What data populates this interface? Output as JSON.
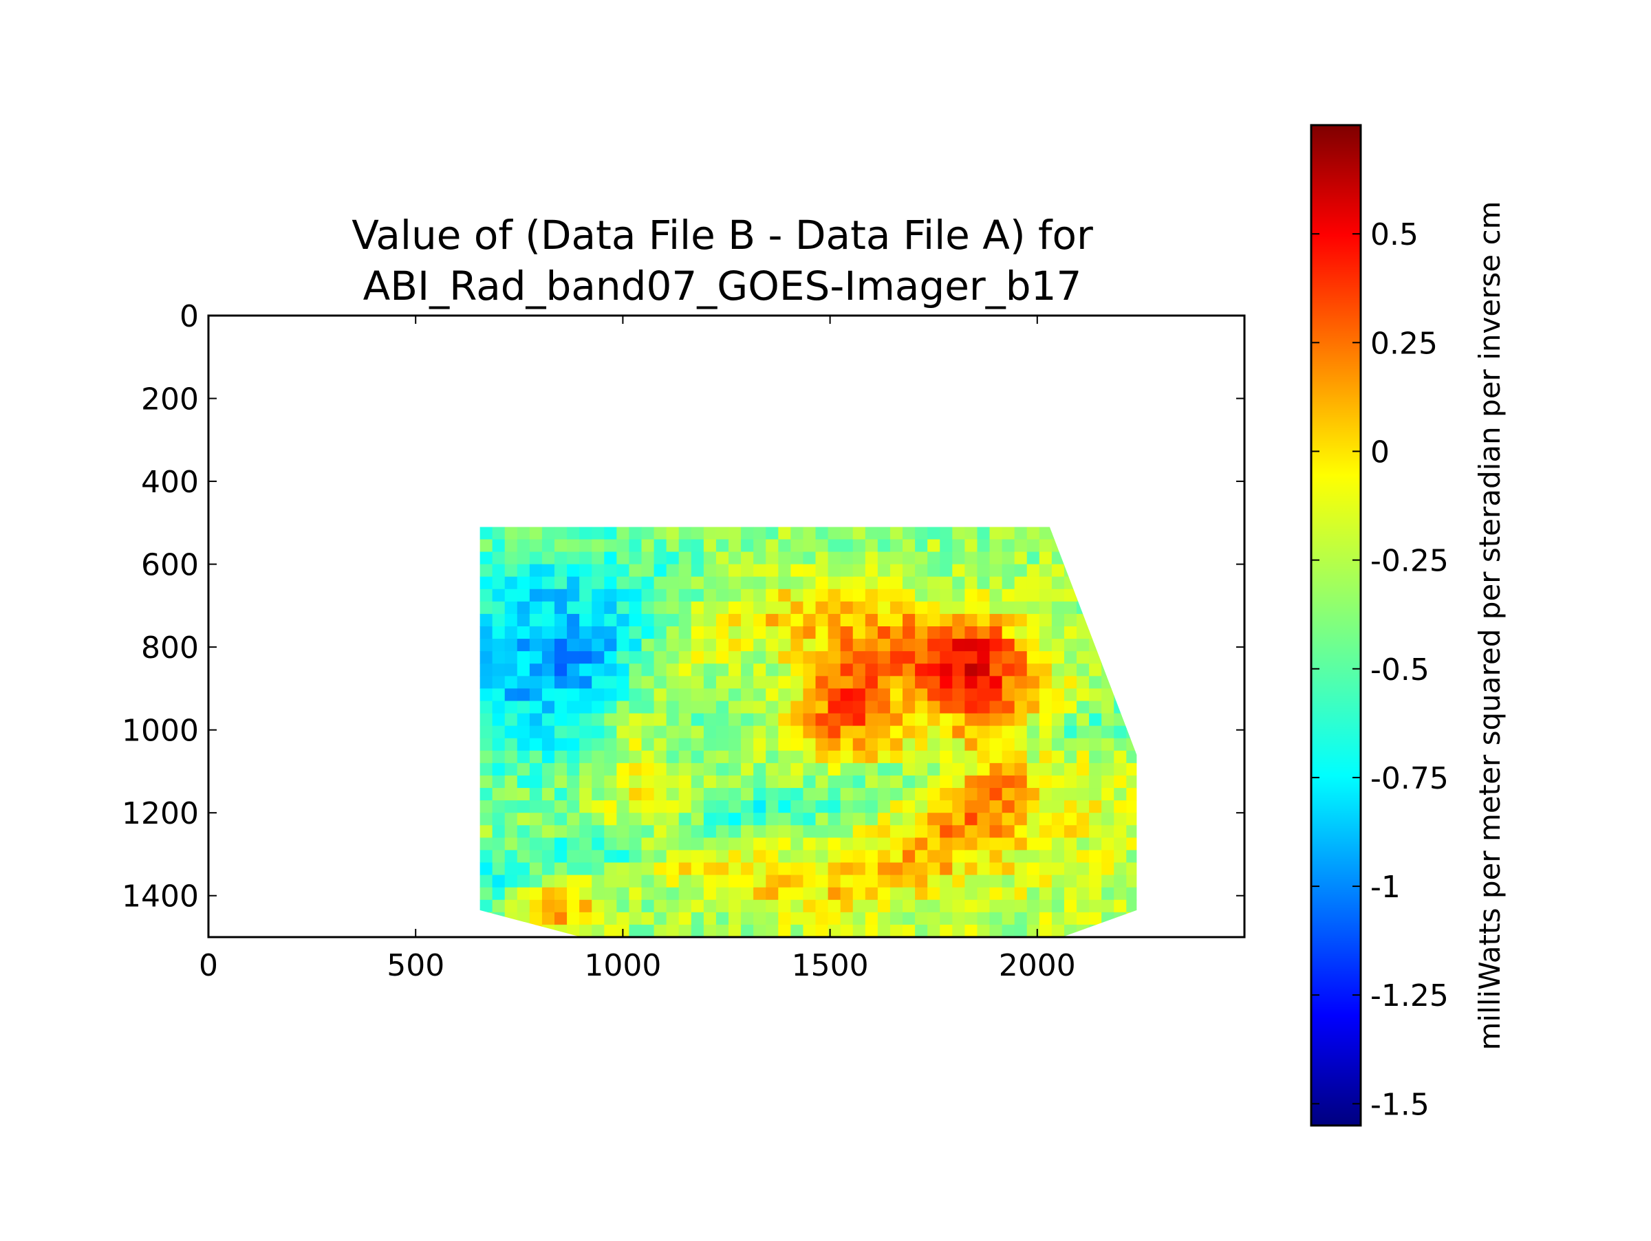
{
  "chart_data": {
    "type": "heatmap",
    "title": "Value of (Data File B - Data File A) for",
    "subtitle": "ABI_Rad_band07_GOES-Imager_b17",
    "xlabel": "",
    "ylabel": "",
    "xlim": [
      0,
      2500
    ],
    "ylim": [
      1500,
      0
    ],
    "x_ticks": [
      0,
      500,
      1000,
      1500,
      2000
    ],
    "y_ticks": [
      0,
      200,
      400,
      600,
      800,
      1000,
      1200,
      1400
    ],
    "data_extent": {
      "x_min": 655,
      "x_max": 2240,
      "y_min": 510,
      "y_max": 1500,
      "note_shape": "right edge slants from x=2030 at y=510 to x=2240 at y=1060"
    },
    "colormap": "jet",
    "colorbar": {
      "label": "milliWatts per meter squared per steradian per inverse cm",
      "range": [
        -1.55,
        0.75
      ],
      "ticks": [
        0.5,
        0.25,
        0,
        -0.25,
        -0.5,
        -0.75,
        -1,
        -1.25,
        -1.5
      ],
      "tick_labels": [
        "0.5",
        "0.25",
        "0",
        "-0.25",
        "-0.5",
        "-0.75",
        "-1",
        "-1.25",
        "-1.5"
      ]
    },
    "grid": false,
    "legend": "none"
  },
  "colors": {
    "axis": "#000000",
    "background": "#ffffff"
  }
}
